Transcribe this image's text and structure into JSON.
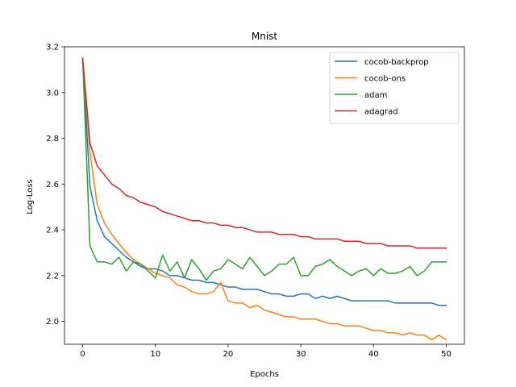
{
  "chart_data": {
    "type": "line",
    "title": "Mnist",
    "xlabel": "Epochs",
    "ylabel": "Log-Loss",
    "xlim": [
      -2.5,
      52.5
    ],
    "ylim": [
      1.9,
      3.2
    ],
    "xticks": [
      0,
      10,
      20,
      30,
      40,
      50
    ],
    "yticks": [
      2.0,
      2.2,
      2.4,
      2.6,
      2.8,
      3.0,
      3.2
    ],
    "grid": false,
    "legend_position": "top-right",
    "x": [
      0,
      1,
      2,
      3,
      4,
      5,
      6,
      7,
      8,
      9,
      10,
      11,
      12,
      13,
      14,
      15,
      16,
      17,
      18,
      19,
      20,
      21,
      22,
      23,
      24,
      25,
      26,
      27,
      28,
      29,
      30,
      31,
      32,
      33,
      34,
      35,
      36,
      37,
      38,
      39,
      40,
      41,
      42,
      43,
      44,
      45,
      46,
      47,
      48,
      49,
      50
    ],
    "series": [
      {
        "name": "cocob-backprop",
        "color": "#1f77b4",
        "values": [
          3.15,
          2.59,
          2.44,
          2.37,
          2.34,
          2.31,
          2.28,
          2.26,
          2.24,
          2.23,
          2.23,
          2.22,
          2.2,
          2.2,
          2.19,
          2.18,
          2.18,
          2.17,
          2.17,
          2.16,
          2.15,
          2.15,
          2.14,
          2.14,
          2.14,
          2.13,
          2.12,
          2.12,
          2.11,
          2.11,
          2.12,
          2.12,
          2.1,
          2.11,
          2.1,
          2.11,
          2.1,
          2.09,
          2.09,
          2.09,
          2.09,
          2.09,
          2.09,
          2.08,
          2.08,
          2.08,
          2.08,
          2.08,
          2.08,
          2.07,
          2.07
        ]
      },
      {
        "name": "cocob-ons",
        "color": "#ff7f0e",
        "values": [
          3.15,
          2.74,
          2.51,
          2.43,
          2.38,
          2.34,
          2.3,
          2.27,
          2.25,
          2.23,
          2.21,
          2.2,
          2.19,
          2.16,
          2.15,
          2.13,
          2.12,
          2.12,
          2.13,
          2.17,
          2.09,
          2.08,
          2.08,
          2.06,
          2.07,
          2.05,
          2.04,
          2.03,
          2.02,
          2.02,
          2.01,
          2.01,
          2.01,
          2.0,
          1.99,
          1.99,
          1.98,
          1.98,
          1.98,
          1.97,
          1.96,
          1.96,
          1.95,
          1.95,
          1.94,
          1.95,
          1.94,
          1.94,
          1.92,
          1.94,
          1.92
        ]
      },
      {
        "name": "adam",
        "color": "#2ca02c",
        "values": [
          3.15,
          2.33,
          2.26,
          2.26,
          2.25,
          2.28,
          2.22,
          2.26,
          2.25,
          2.22,
          2.19,
          2.29,
          2.22,
          2.26,
          2.19,
          2.27,
          2.23,
          2.18,
          2.22,
          2.23,
          2.27,
          2.25,
          2.23,
          2.28,
          2.24,
          2.2,
          2.22,
          2.25,
          2.25,
          2.28,
          2.2,
          2.2,
          2.24,
          2.25,
          2.27,
          2.24,
          2.22,
          2.2,
          2.22,
          2.23,
          2.2,
          2.23,
          2.21,
          2.21,
          2.22,
          2.24,
          2.2,
          2.22,
          2.26,
          2.26,
          2.26
        ]
      },
      {
        "name": "adagrad",
        "color": "#d62728",
        "values": [
          3.15,
          2.78,
          2.68,
          2.64,
          2.6,
          2.58,
          2.55,
          2.54,
          2.52,
          2.51,
          2.5,
          2.48,
          2.47,
          2.46,
          2.45,
          2.44,
          2.44,
          2.43,
          2.43,
          2.42,
          2.42,
          2.41,
          2.41,
          2.4,
          2.39,
          2.39,
          2.39,
          2.38,
          2.38,
          2.38,
          2.37,
          2.37,
          2.36,
          2.36,
          2.36,
          2.36,
          2.35,
          2.35,
          2.35,
          2.34,
          2.34,
          2.34,
          2.33,
          2.33,
          2.33,
          2.33,
          2.32,
          2.32,
          2.32,
          2.32,
          2.32
        ]
      }
    ]
  }
}
